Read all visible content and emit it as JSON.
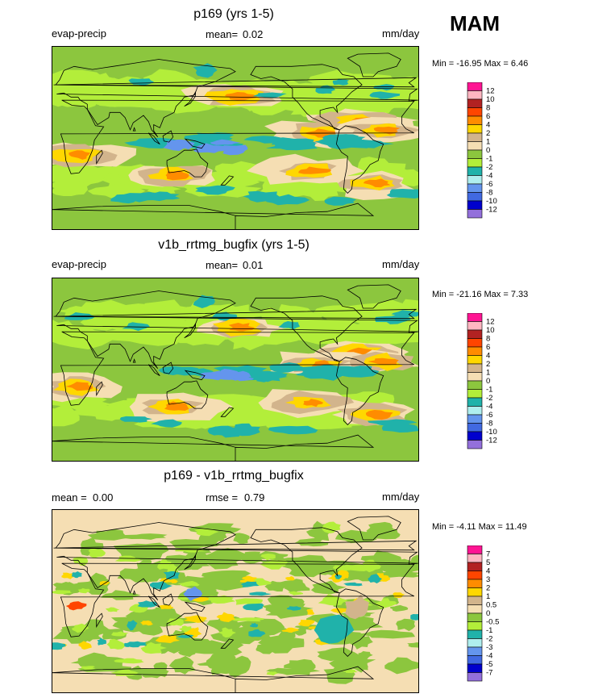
{
  "season": "MAM",
  "palette": {
    "ocean_base": "#8cc63e",
    "land_outline": "#000000",
    "frame": "#000000"
  },
  "chart_data": [
    {
      "type": "heatmap",
      "title": "p169 (yrs 1-5)",
      "variable": "evap-precip",
      "stat_label_1": "mean=",
      "stat_value_1": "0.02",
      "units": "mm/day",
      "minmax": "Min = -16.95 Max =   6.46",
      "min": -16.95,
      "max": 6.46,
      "projection": "cylindrical equidistant",
      "colorbar": {
        "levels": [
          "12",
          "10",
          "8",
          "6",
          "4",
          "2",
          "1",
          "0",
          "-1",
          "-2",
          "-4",
          "-6",
          "-8",
          "-10",
          "-12"
        ],
        "colors": [
          "#ff1493",
          "#ffb6c1",
          "#b22222",
          "#ff4500",
          "#ff8c00",
          "#ffd700",
          "#d2b48c",
          "#f5deb3",
          "#8cc63e",
          "#b3ee3a",
          "#20b2aa",
          "#afeeee",
          "#6495ed",
          "#4169e1",
          "#0000cd",
          "#9370db"
        ]
      }
    },
    {
      "type": "heatmap",
      "title": "v1b_rrtmg_bugfix (yrs 1-5)",
      "variable": "evap-precip",
      "stat_label_1": "mean=",
      "stat_value_1": "0.01",
      "units": "mm/day",
      "minmax": "Min = -21.16 Max =   7.33",
      "min": -21.16,
      "max": 7.33,
      "projection": "cylindrical equidistant",
      "colorbar": {
        "levels": [
          "12",
          "10",
          "8",
          "6",
          "4",
          "2",
          "1",
          "0",
          "-1",
          "-2",
          "-4",
          "-6",
          "-8",
          "-10",
          "-12"
        ],
        "colors": [
          "#ff1493",
          "#ffb6c1",
          "#b22222",
          "#ff4500",
          "#ff8c00",
          "#ffd700",
          "#d2b48c",
          "#f5deb3",
          "#8cc63e",
          "#b3ee3a",
          "#20b2aa",
          "#afeeee",
          "#6495ed",
          "#4169e1",
          "#0000cd",
          "#9370db"
        ]
      }
    },
    {
      "type": "heatmap",
      "title": "p169 - v1b_rrtmg_bugfix",
      "variable": "",
      "stat_label_1": "mean =",
      "stat_value_1": "0.00",
      "stat_label_2": "rmse =",
      "stat_value_2": "0.79",
      "units": "mm/day",
      "minmax": "Min =  -4.11 Max =  11.49",
      "min": -4.11,
      "max": 11.49,
      "projection": "cylindrical equidistant",
      "colorbar": {
        "levels": [
          "7",
          "5",
          "4",
          "3",
          "2",
          "1",
          "0.5",
          "0",
          "-0.5",
          "-1",
          "-2",
          "-3",
          "-4",
          "-5",
          "-7"
        ],
        "colors": [
          "#ff1493",
          "#ffb6c1",
          "#b22222",
          "#ff4500",
          "#ff8c00",
          "#ffd700",
          "#d2b48c",
          "#f5deb3",
          "#8cc63e",
          "#b3ee3a",
          "#20b2aa",
          "#afeeee",
          "#6495ed",
          "#4169e1",
          "#0000cd",
          "#9370db"
        ]
      }
    }
  ]
}
